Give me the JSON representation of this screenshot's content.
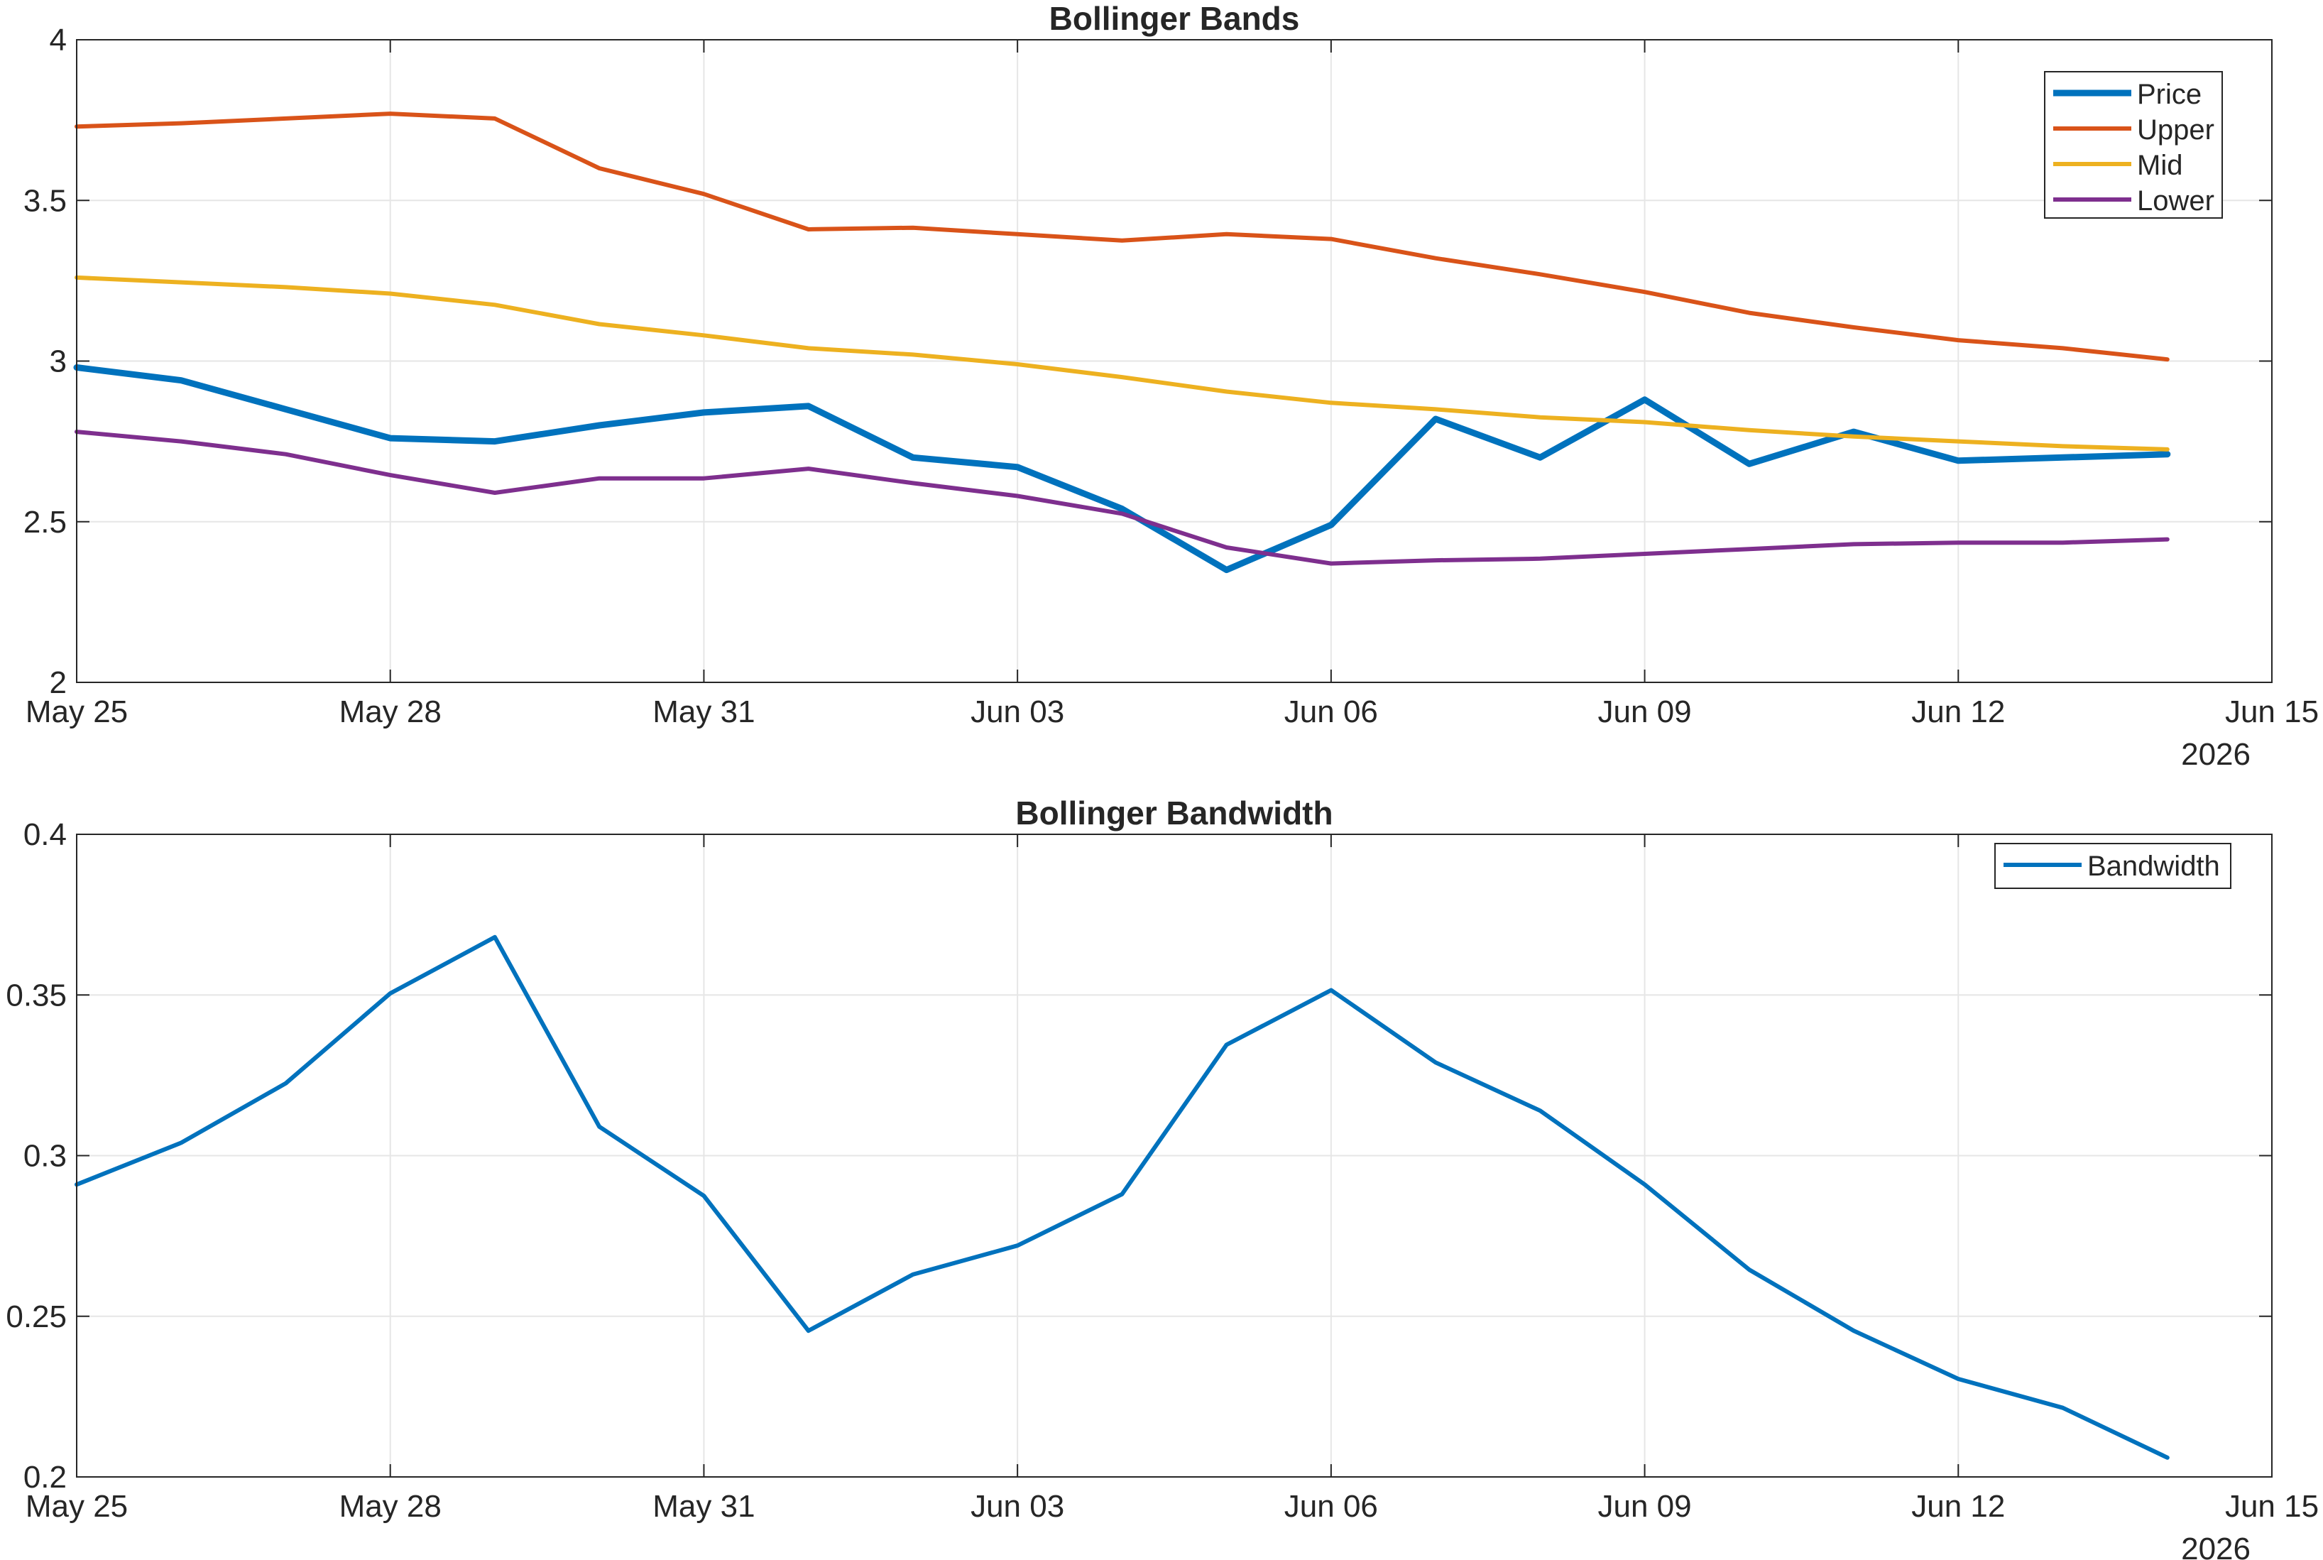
{
  "chart_data": [
    {
      "type": "line",
      "title": "Bollinger Bands",
      "xlabel": "",
      "ylabel": "",
      "x_type": "date",
      "xlim": [
        "2026-05-25",
        "2026-06-15"
      ],
      "ylim": [
        2,
        4
      ],
      "x_ticks": [
        "May 25",
        "May 28",
        "May 31",
        "Jun 03",
        "Jun 06",
        "Jun 09",
        "Jun 12",
        "Jun 15"
      ],
      "x_secondary_label": "2026",
      "y_ticks": [
        "2",
        "2.5",
        "3",
        "3.5",
        "4"
      ],
      "grid": true,
      "legend_position": "top-right",
      "x": [
        "2026-05-25",
        "2026-05-26",
        "2026-05-27",
        "2026-05-28",
        "2026-05-29",
        "2026-05-30",
        "2026-05-31",
        "2026-06-01",
        "2026-06-02",
        "2026-06-03",
        "2026-06-04",
        "2026-06-05",
        "2026-06-06",
        "2026-06-07",
        "2026-06-08",
        "2026-06-09",
        "2026-06-10",
        "2026-06-11",
        "2026-06-12",
        "2026-06-13",
        "2026-06-14"
      ],
      "series": [
        {
          "name": "Price",
          "color": "#0072BD",
          "values": [
            2.98,
            2.94,
            2.85,
            2.76,
            2.75,
            2.8,
            2.84,
            2.86,
            2.7,
            2.67,
            2.54,
            2.35,
            2.49,
            2.82,
            2.7,
            2.88,
            2.68,
            2.78,
            2.69,
            2.7,
            2.71
          ]
        },
        {
          "name": "Upper",
          "color": "#D95319",
          "values": [
            3.73,
            3.74,
            3.755,
            3.77,
            3.755,
            3.6,
            3.52,
            3.41,
            3.415,
            3.395,
            3.375,
            3.395,
            3.38,
            3.32,
            3.27,
            3.215,
            3.15,
            3.105,
            3.065,
            3.04,
            3.005
          ]
        },
        {
          "name": "Mid",
          "color": "#EDB120",
          "values": [
            3.26,
            3.245,
            3.23,
            3.21,
            3.175,
            3.115,
            3.08,
            3.04,
            3.02,
            2.99,
            2.95,
            2.905,
            2.87,
            2.85,
            2.825,
            2.81,
            2.785,
            2.765,
            2.75,
            2.735,
            2.725
          ]
        },
        {
          "name": "Lower",
          "color": "#7E2F8E",
          "values": [
            2.78,
            2.75,
            2.71,
            2.645,
            2.59,
            2.635,
            2.635,
            2.665,
            2.62,
            2.58,
            2.525,
            2.42,
            2.37,
            2.38,
            2.385,
            2.4,
            2.415,
            2.43,
            2.435,
            2.435,
            2.445
          ]
        }
      ]
    },
    {
      "type": "line",
      "title": "Bollinger Bandwidth",
      "xlabel": "",
      "ylabel": "",
      "x_type": "date",
      "xlim": [
        "2026-05-25",
        "2026-06-15"
      ],
      "ylim": [
        0.2,
        0.4
      ],
      "x_ticks": [
        "May 25",
        "May 28",
        "May 31",
        "Jun 03",
        "Jun 06",
        "Jun 09",
        "Jun 12",
        "Jun 15"
      ],
      "x_secondary_label": "2026",
      "y_ticks": [
        "0.2",
        "0.25",
        "0.3",
        "0.35",
        "0.4"
      ],
      "grid": true,
      "legend_position": "top-right",
      "x": [
        "2026-05-25",
        "2026-05-26",
        "2026-05-27",
        "2026-05-28",
        "2026-05-29",
        "2026-05-30",
        "2026-05-31",
        "2026-06-01",
        "2026-06-02",
        "2026-06-03",
        "2026-06-04",
        "2026-06-05",
        "2026-06-06",
        "2026-06-07",
        "2026-06-08",
        "2026-06-09",
        "2026-06-10",
        "2026-06-11",
        "2026-06-12",
        "2026-06-13",
        "2026-06-14"
      ],
      "series": [
        {
          "name": "Bandwidth",
          "color": "#0072BD",
          "values": [
            0.291,
            0.304,
            0.3225,
            0.3505,
            0.368,
            0.309,
            0.2875,
            0.2455,
            0.263,
            0.272,
            0.288,
            0.3345,
            0.3515,
            0.329,
            0.314,
            0.291,
            0.2645,
            0.2455,
            0.2305,
            0.2215,
            0.206
          ]
        }
      ]
    }
  ]
}
